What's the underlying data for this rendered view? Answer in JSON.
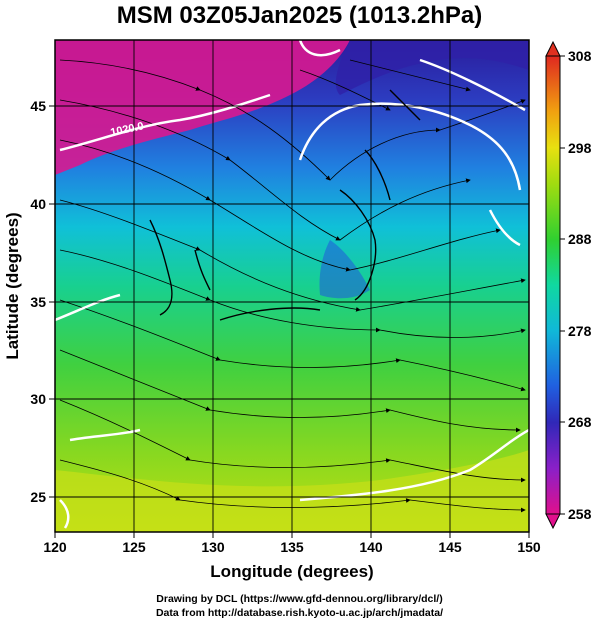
{
  "title": "MSM 03Z05Jan2025 (1013.2hPa)",
  "xaxis": {
    "label": "Longitude (degrees)",
    "range": [
      120,
      150
    ],
    "ticks": [
      "120",
      "125",
      "130",
      "135",
      "140",
      "145",
      "150"
    ]
  },
  "yaxis": {
    "label": "Latitude  (degrees)",
    "range": [
      22.4,
      47.6
    ],
    "ticks": [
      "25",
      "30",
      "35",
      "40",
      "45"
    ]
  },
  "colorbar": {
    "range": [
      258,
      308
    ],
    "ticks": [
      "258",
      "268",
      "278",
      "288",
      "298",
      "308"
    ],
    "colors": [
      "#d8108c",
      "#a020c8",
      "#4028b8",
      "#2060e0",
      "#10b8d8",
      "#10d8b0",
      "#38d040",
      "#a8dc10",
      "#e8e010",
      "#f0b010",
      "#f07018",
      "#e02820"
    ]
  },
  "contour_label": "1020.0",
  "credits": {
    "line1": "Drawing by DCL (https://www.gfd-dennou.org/library/dcl/)",
    "line2": "Data from http://database.rish.kyoto-u.ac.jp/arch/jmadata/"
  }
}
